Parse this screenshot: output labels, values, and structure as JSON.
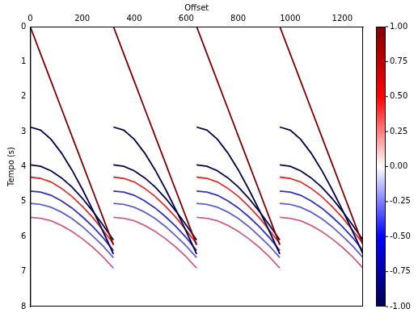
{
  "chart_data": {
    "type": "line",
    "x_label": "Offset",
    "y_label": "Tempo (s)",
    "xlim": [
      0,
      1280
    ],
    "xticks": [
      0,
      200,
      400,
      600,
      800,
      1000,
      1200
    ],
    "ylim": [
      8,
      0
    ],
    "yticks": [
      0,
      1,
      2,
      3,
      4,
      5,
      6,
      7,
      8
    ],
    "grid": false,
    "marker": "none",
    "line_style": "solid",
    "colorbar": {
      "range": [
        -1,
        1
      ],
      "ticks": [
        {
          "value": -1,
          "label": "-1.00"
        },
        {
          "value": -0.75,
          "label": "-0.75"
        },
        {
          "value": -0.5,
          "label": "-0.50"
        },
        {
          "value": -0.25,
          "label": "-0.25"
        },
        {
          "value": 0,
          "label": "0.00"
        },
        {
          "value": 0.25,
          "label": "0.25"
        },
        {
          "value": 0.5,
          "label": "0.50"
        },
        {
          "value": 0.75,
          "label": "0.75"
        },
        {
          "value": 1,
          "label": "1.00"
        }
      ],
      "colors": [
        "#00004c",
        "#0000ff",
        "#ffffff",
        "#ff0000",
        "#7f0000"
      ]
    },
    "series": [
      {
        "color": "#7f0000",
        "x": [
          0,
          40,
          80,
          120,
          160,
          200,
          240,
          280,
          320
        ],
        "values": [
          0,
          0.78,
          1.56,
          2.34,
          3.12,
          3.9,
          4.68,
          5.46,
          6.24
        ]
      },
      {
        "color": "#00004c",
        "x": [
          0,
          40,
          80,
          120,
          160,
          200,
          240,
          280,
          320
        ],
        "values": [
          2.87,
          2.96,
          3.22,
          3.61,
          4.09,
          4.64,
          5.23,
          5.85,
          6.5
        ]
      },
      {
        "color": "#00004c",
        "x": [
          0,
          40,
          80,
          120,
          160,
          200,
          240,
          280,
          320
        ],
        "values": [
          3.95,
          3.99,
          4.12,
          4.32,
          4.58,
          4.9,
          5.27,
          5.67,
          6.1
        ]
      },
      {
        "color": "#e03030",
        "x": [
          0,
          40,
          80,
          120,
          160,
          200,
          240,
          280,
          320
        ],
        "values": [
          4.3,
          4.34,
          4.44,
          4.62,
          4.85,
          5.13,
          5.45,
          5.82,
          6.2
        ]
      },
      {
        "color": "#3030c0",
        "x": [
          0,
          40,
          80,
          120,
          160,
          200,
          240,
          280,
          320
        ],
        "values": [
          4.7,
          4.73,
          4.82,
          4.98,
          5.18,
          5.43,
          5.71,
          6.03,
          6.4
        ]
      },
      {
        "color": "#6060d0",
        "x": [
          0,
          40,
          80,
          120,
          160,
          200,
          240,
          280,
          320
        ],
        "values": [
          5.05,
          5.08,
          5.16,
          5.3,
          5.48,
          5.71,
          5.98,
          6.27,
          6.6
        ]
      },
      {
        "color": "#d06080",
        "x": [
          0,
          40,
          80,
          120,
          160,
          200,
          240,
          280,
          320
        ],
        "values": [
          5.45,
          5.48,
          5.55,
          5.68,
          5.85,
          6.06,
          6.3,
          6.58,
          6.9
        ]
      },
      {
        "color": "#7f0000",
        "x": [
          320,
          360,
          400,
          440,
          480,
          520,
          560,
          600,
          640
        ],
        "values": [
          0,
          0.78,
          1.56,
          2.34,
          3.12,
          3.9,
          4.68,
          5.46,
          6.24
        ]
      },
      {
        "color": "#00004c",
        "x": [
          320,
          360,
          400,
          440,
          480,
          520,
          560,
          600,
          640
        ],
        "values": [
          2.87,
          2.96,
          3.22,
          3.61,
          4.09,
          4.64,
          5.23,
          5.85,
          6.5
        ]
      },
      {
        "color": "#00004c",
        "x": [
          320,
          360,
          400,
          440,
          480,
          520,
          560,
          600,
          640
        ],
        "values": [
          3.95,
          3.99,
          4.12,
          4.32,
          4.58,
          4.9,
          5.27,
          5.67,
          6.1
        ]
      },
      {
        "color": "#e03030",
        "x": [
          320,
          360,
          400,
          440,
          480,
          520,
          560,
          600,
          640
        ],
        "values": [
          4.3,
          4.34,
          4.44,
          4.62,
          4.85,
          5.13,
          5.45,
          5.82,
          6.2
        ]
      },
      {
        "color": "#3030c0",
        "x": [
          320,
          360,
          400,
          440,
          480,
          520,
          560,
          600,
          640
        ],
        "values": [
          4.7,
          4.73,
          4.82,
          4.98,
          5.18,
          5.43,
          5.71,
          6.03,
          6.4
        ]
      },
      {
        "color": "#6060d0",
        "x": [
          320,
          360,
          400,
          440,
          480,
          520,
          560,
          600,
          640
        ],
        "values": [
          5.05,
          5.08,
          5.16,
          5.3,
          5.48,
          5.71,
          5.98,
          6.27,
          6.6
        ]
      },
      {
        "color": "#d06080",
        "x": [
          320,
          360,
          400,
          440,
          480,
          520,
          560,
          600,
          640
        ],
        "values": [
          5.45,
          5.48,
          5.55,
          5.68,
          5.85,
          6.06,
          6.3,
          6.58,
          6.9
        ]
      },
      {
        "color": "#7f0000",
        "x": [
          640,
          680,
          720,
          760,
          800,
          840,
          880,
          920,
          960
        ],
        "values": [
          0,
          0.78,
          1.56,
          2.34,
          3.12,
          3.9,
          4.68,
          5.46,
          6.24
        ]
      },
      {
        "color": "#00004c",
        "x": [
          640,
          680,
          720,
          760,
          800,
          840,
          880,
          920,
          960
        ],
        "values": [
          2.87,
          2.96,
          3.22,
          3.61,
          4.09,
          4.64,
          5.23,
          5.85,
          6.5
        ]
      },
      {
        "color": "#00004c",
        "x": [
          640,
          680,
          720,
          760,
          800,
          840,
          880,
          920,
          960
        ],
        "values": [
          3.95,
          3.99,
          4.12,
          4.32,
          4.58,
          4.9,
          5.27,
          5.67,
          6.1
        ]
      },
      {
        "color": "#e03030",
        "x": [
          640,
          680,
          720,
          760,
          800,
          840,
          880,
          920,
          960
        ],
        "values": [
          4.3,
          4.34,
          4.44,
          4.62,
          4.85,
          5.13,
          5.45,
          5.82,
          6.2
        ]
      },
      {
        "color": "#3030c0",
        "x": [
          640,
          680,
          720,
          760,
          800,
          840,
          880,
          920,
          960
        ],
        "values": [
          4.7,
          4.73,
          4.82,
          4.98,
          5.18,
          5.43,
          5.71,
          6.03,
          6.4
        ]
      },
      {
        "color": "#6060d0",
        "x": [
          640,
          680,
          720,
          760,
          800,
          840,
          880,
          920,
          960
        ],
        "values": [
          5.05,
          5.08,
          5.16,
          5.3,
          5.48,
          5.71,
          5.98,
          6.27,
          6.6
        ]
      },
      {
        "color": "#d06080",
        "x": [
          640,
          680,
          720,
          760,
          800,
          840,
          880,
          920,
          960
        ],
        "values": [
          5.45,
          5.48,
          5.55,
          5.68,
          5.85,
          6.06,
          6.3,
          6.58,
          6.9
        ]
      },
      {
        "color": "#7f0000",
        "x": [
          960,
          1000,
          1040,
          1080,
          1120,
          1160,
          1200,
          1240,
          1280
        ],
        "values": [
          0,
          0.78,
          1.56,
          2.34,
          3.12,
          3.9,
          4.68,
          5.46,
          6.24
        ]
      },
      {
        "color": "#00004c",
        "x": [
          960,
          1000,
          1040,
          1080,
          1120,
          1160,
          1200,
          1240,
          1280
        ],
        "values": [
          2.87,
          2.96,
          3.22,
          3.61,
          4.09,
          4.64,
          5.23,
          5.85,
          6.5
        ]
      },
      {
        "color": "#00004c",
        "x": [
          960,
          1000,
          1040,
          1080,
          1120,
          1160,
          1200,
          1240,
          1280
        ],
        "values": [
          3.95,
          3.99,
          4.12,
          4.32,
          4.58,
          4.9,
          5.27,
          5.67,
          6.1
        ]
      },
      {
        "color": "#e03030",
        "x": [
          960,
          1000,
          1040,
          1080,
          1120,
          1160,
          1200,
          1240,
          1280
        ],
        "values": [
          4.3,
          4.34,
          4.44,
          4.62,
          4.85,
          5.13,
          5.45,
          5.82,
          6.2
        ]
      },
      {
        "color": "#3030c0",
        "x": [
          960,
          1000,
          1040,
          1080,
          1120,
          1160,
          1200,
          1240,
          1280
        ],
        "values": [
          4.7,
          4.73,
          4.82,
          4.98,
          5.18,
          5.43,
          5.71,
          6.03,
          6.4
        ]
      },
      {
        "color": "#6060d0",
        "x": [
          960,
          1000,
          1040,
          1080,
          1120,
          1160,
          1200,
          1240,
          1280
        ],
        "values": [
          5.05,
          5.08,
          5.16,
          5.3,
          5.48,
          5.71,
          5.98,
          6.27,
          6.6
        ]
      },
      {
        "color": "#d06080",
        "x": [
          960,
          1000,
          1040,
          1080,
          1120,
          1160,
          1200,
          1240,
          1280
        ],
        "values": [
          5.45,
          5.48,
          5.55,
          5.68,
          5.85,
          6.06,
          6.3,
          6.58,
          6.9
        ]
      }
    ]
  }
}
